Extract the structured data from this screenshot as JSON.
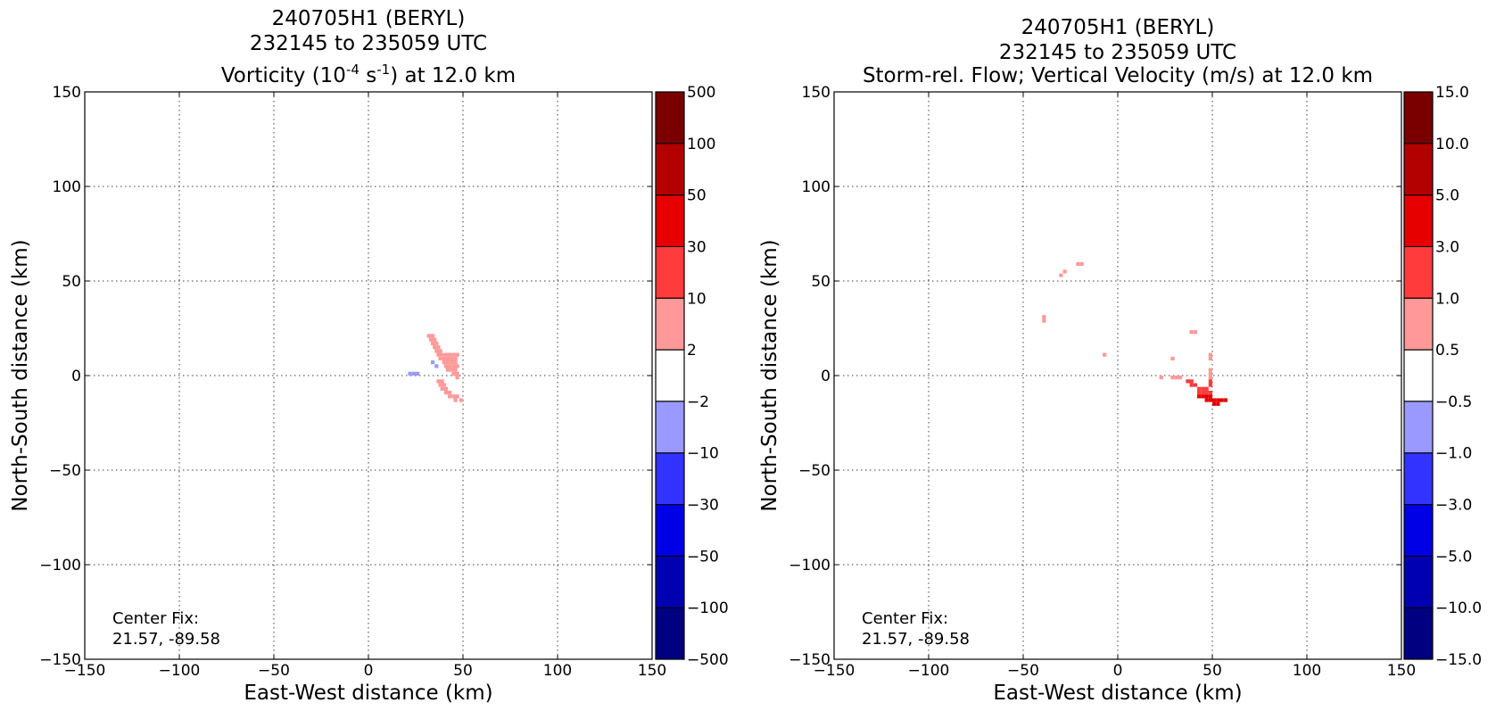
{
  "chart_data": [
    {
      "type": "heatmap",
      "title_lines": [
        "240705H1 (BERYL)",
        "232145 to 235059 UTC"
      ],
      "title_field": {
        "prefix": "Vorticity (10",
        "exp1": "-4",
        "mid": " s",
        "exp2": "-1",
        "suffix": ") at 12.0 km"
      },
      "xlabel": "East-West distance (km)",
      "ylabel": "North-South distance (km)",
      "xlim": [
        -150,
        150
      ],
      "ylim": [
        -150,
        150
      ],
      "xticks": [
        -150,
        -100,
        -50,
        0,
        50,
        100,
        150
      ],
      "yticks": [
        -150,
        -100,
        -50,
        0,
        50,
        100,
        150
      ],
      "xtick_labels": [
        "−150",
        "−100",
        "−50",
        "0",
        "50",
        "100",
        "150"
      ],
      "ytick_labels": [
        "−150",
        "−100",
        "−50",
        "0",
        "50",
        "100",
        "150"
      ],
      "grid": true,
      "annotation": [
        "Center Fix:",
        "21.57, -89.58"
      ],
      "colorbar": {
        "labels": [
          "500",
          "100",
          "50",
          "30",
          "10",
          "2",
          "−2",
          "−10",
          "−30",
          "−50",
          "−100",
          "−500"
        ],
        "colors": [
          "#7a0000",
          "#b30000",
          "#e60000",
          "#ff3b3b",
          "#ff9999",
          "#ffffff",
          "#9999ff",
          "#3333ff",
          "#0000e6",
          "#0000b3",
          "#000080"
        ]
      },
      "regions": [
        {
          "color": "#ff9999",
          "cells": [
            [
              31,
              20
            ],
            [
              33,
              20
            ],
            [
              32,
              18
            ],
            [
              34,
              18
            ],
            [
              33,
              16
            ],
            [
              35,
              16
            ],
            [
              34,
              14
            ],
            [
              36,
              14
            ],
            [
              35,
              12
            ],
            [
              37,
              12
            ],
            [
              36,
              10
            ],
            [
              38,
              10
            ],
            [
              40,
              10
            ],
            [
              42,
              10
            ],
            [
              44,
              10
            ],
            [
              46,
              10
            ],
            [
              37,
              8
            ],
            [
              39,
              8
            ],
            [
              41,
              8
            ],
            [
              43,
              8
            ],
            [
              45,
              8
            ],
            [
              39,
              6
            ],
            [
              41,
              6
            ],
            [
              43,
              6
            ],
            [
              45,
              6
            ],
            [
              40,
              4
            ],
            [
              42,
              4
            ],
            [
              44,
              4
            ],
            [
              46,
              4
            ],
            [
              41,
              2
            ],
            [
              43,
              2
            ],
            [
              45,
              2
            ],
            [
              44,
              0
            ],
            [
              46,
              0
            ],
            [
              46,
              -2
            ],
            [
              36,
              -4
            ],
            [
              38,
              -4
            ],
            [
              37,
              -6
            ],
            [
              39,
              -6
            ],
            [
              38,
              -8
            ],
            [
              40,
              -8
            ],
            [
              40,
              -10
            ],
            [
              42,
              -10
            ],
            [
              42,
              -12
            ],
            [
              44,
              -12
            ],
            [
              46,
              -12
            ],
            [
              45,
              -14
            ],
            [
              48,
              -14
            ]
          ]
        },
        {
          "color": "#9999ff",
          "cells": [
            [
              21,
              0
            ],
            [
              23,
              0
            ],
            [
              25,
              0
            ],
            [
              33,
              6
            ],
            [
              35,
              4
            ]
          ]
        }
      ]
    },
    {
      "type": "heatmap",
      "title_lines": [
        "240705H1 (BERYL)",
        "232145 to 235059 UTC"
      ],
      "title_field": {
        "text": "Storm-rel. Flow; Vertical Velocity (m/s) at 12.0 km"
      },
      "xlabel": "East-West distance (km)",
      "ylabel": "North-South distance (km)",
      "xlim": [
        -150,
        150
      ],
      "ylim": [
        -150,
        150
      ],
      "xticks": [
        -150,
        -100,
        -50,
        0,
        50,
        100,
        150
      ],
      "yticks": [
        -150,
        -100,
        -50,
        0,
        50,
        100,
        150
      ],
      "xtick_labels": [
        "−150",
        "−100",
        "−50",
        "0",
        "50",
        "100",
        "150"
      ],
      "ytick_labels": [
        "−150",
        "−100",
        "−50",
        "0",
        "50",
        "100",
        "150"
      ],
      "grid": true,
      "annotation": [
        "Center Fix:",
        "21.57, -89.58"
      ],
      "colorbar": {
        "labels": [
          "15.0",
          "10.0",
          "5.0",
          "3.0",
          "1.0",
          "0.5",
          "−0.5",
          "−1.0",
          "−3.0",
          "−5.0",
          "−10.0",
          "−15.0"
        ],
        "colors": [
          "#7a0000",
          "#b30000",
          "#e60000",
          "#ff3b3b",
          "#ff9999",
          "#ffffff",
          "#9999ff",
          "#3333ff",
          "#0000e6",
          "#0000b3",
          "#000080"
        ]
      },
      "regions": [
        {
          "color": "#ff9999",
          "cells": [
            [
              -22,
              58
            ],
            [
              -20,
              58
            ],
            [
              -31,
              52
            ],
            [
              -29,
              54
            ],
            [
              -40,
              30
            ],
            [
              -40,
              28
            ],
            [
              -8,
              10
            ],
            [
              38,
              22
            ],
            [
              40,
              22
            ],
            [
              28,
              8
            ],
            [
              48,
              10
            ],
            [
              48,
              8
            ],
            [
              48,
              2
            ],
            [
              48,
              0
            ],
            [
              48,
              -2
            ],
            [
              28,
              -2
            ],
            [
              30,
              -2
            ],
            [
              32,
              -2
            ],
            [
              22,
              -2
            ]
          ]
        },
        {
          "color": "#ff3b3b",
          "cells": [
            [
              36,
              -4
            ],
            [
              38,
              -4
            ],
            [
              38,
              -6
            ],
            [
              40,
              -6
            ],
            [
              42,
              -8
            ],
            [
              44,
              -8
            ],
            [
              46,
              -8
            ],
            [
              42,
              -10
            ],
            [
              44,
              -10
            ],
            [
              46,
              -10
            ],
            [
              48,
              -10
            ],
            [
              48,
              -4
            ],
            [
              48,
              -6
            ]
          ]
        },
        {
          "color": "#e60000",
          "cells": [
            [
              42,
              -12
            ],
            [
              44,
              -12
            ],
            [
              46,
              -12
            ],
            [
              48,
              -12
            ],
            [
              46,
              -14
            ],
            [
              48,
              -14
            ],
            [
              50,
              -14
            ],
            [
              52,
              -14
            ],
            [
              54,
              -14
            ],
            [
              56,
              -14
            ],
            [
              50,
              -16
            ],
            [
              52,
              -16
            ]
          ]
        }
      ]
    }
  ]
}
